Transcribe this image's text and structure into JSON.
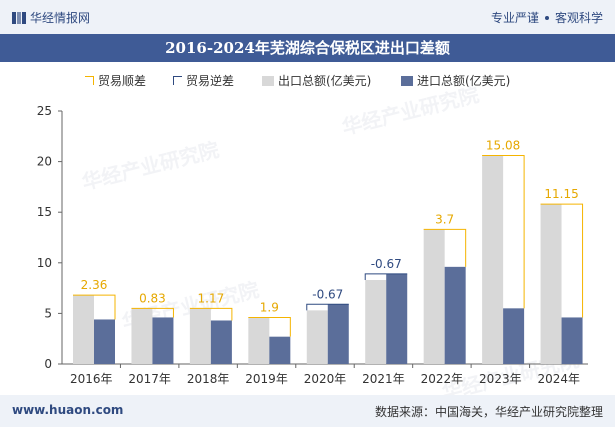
{
  "header": {
    "brand": "华经情报网",
    "slogan_left": "专业严谨",
    "slogan_right": "客观科学"
  },
  "title": "2016-2024年芜湖综合保税区进出口差额",
  "legend": [
    {
      "label": "贸易顺差",
      "color": "#f5b400"
    },
    {
      "label": "贸易逆差",
      "color": "#2f4a80"
    },
    {
      "label": "出口总额(亿美元)",
      "color": "#d8d8d8"
    },
    {
      "label": "进口总额(亿美元)",
      "color": "#5b6e9a"
    }
  ],
  "watermark": "华经产业研究院",
  "footer": {
    "site": "www.huaon.com",
    "source": "数据来源：中国海关，华经产业研究院整理"
  },
  "chart_data": {
    "type": "bar",
    "categories": [
      "2016年",
      "2017年",
      "2018年",
      "2019年",
      "2020年",
      "2021年",
      "2022年",
      "2023年",
      "2024年"
    ],
    "series": [
      {
        "name": "出口总额(亿美元)",
        "color": "#d8d8d8",
        "values": [
          6.8,
          5.5,
          5.5,
          4.6,
          5.3,
          8.3,
          13.3,
          20.6,
          15.8
        ]
      },
      {
        "name": "进口总额(亿美元)",
        "color": "#5b6e9a",
        "values": [
          4.4,
          4.6,
          4.3,
          2.7,
          5.9,
          8.9,
          9.6,
          5.5,
          4.6
        ]
      }
    ],
    "balance": {
      "values": [
        2.36,
        0.83,
        1.17,
        1.9,
        -0.67,
        -0.67,
        3.7,
        15.08,
        11.15
      ],
      "labels": [
        "2.36",
        "0.83",
        "1.17",
        "1.9",
        "-0.67",
        "-0.67",
        "3.7",
        "15.08",
        "11.15"
      ],
      "surplus_color": "#f5b400",
      "deficit_color": "#2f4a80"
    },
    "ylim": [
      0,
      25
    ],
    "yticks": [
      0,
      5,
      10,
      15,
      20,
      25
    ],
    "grid": false
  }
}
